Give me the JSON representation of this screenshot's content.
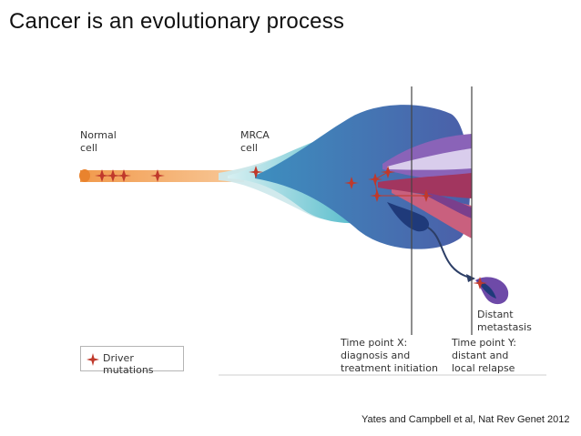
{
  "slide": {
    "title": "Cancer is an evolutionary process",
    "citation": "Yates and Campbell et al, Nat Rev Genet 2012"
  },
  "diagram": {
    "labels": {
      "normal_cell_line1": "Normal",
      "normal_cell_line2": "cell",
      "mrca_line1": "MRCA",
      "mrca_line2": "cell",
      "distant_line1": "Distant",
      "distant_line2": "metastasis",
      "tpx_line1": "Time point X:",
      "tpx_line2": "diagnosis and",
      "tpx_line3": "treatment initiation",
      "tpy_line1": "Time point Y:",
      "tpy_line2": "distant and",
      "tpy_line3": "local relapse"
    },
    "legend": {
      "label": "Driver mutations"
    },
    "colors": {
      "normal": "#f0a15a",
      "teal_light": "#bfe3e6",
      "teal": "#3fb5c6",
      "teal_dark": "#2d8fb3",
      "blue_main": "#4a62a8",
      "navy": "#1f3a7a",
      "purple": "#8a63b8",
      "lavender": "#c8b7e3",
      "magenta": "#a2365f",
      "pink": "#c9607e",
      "mutation": "#c0392b"
    }
  }
}
